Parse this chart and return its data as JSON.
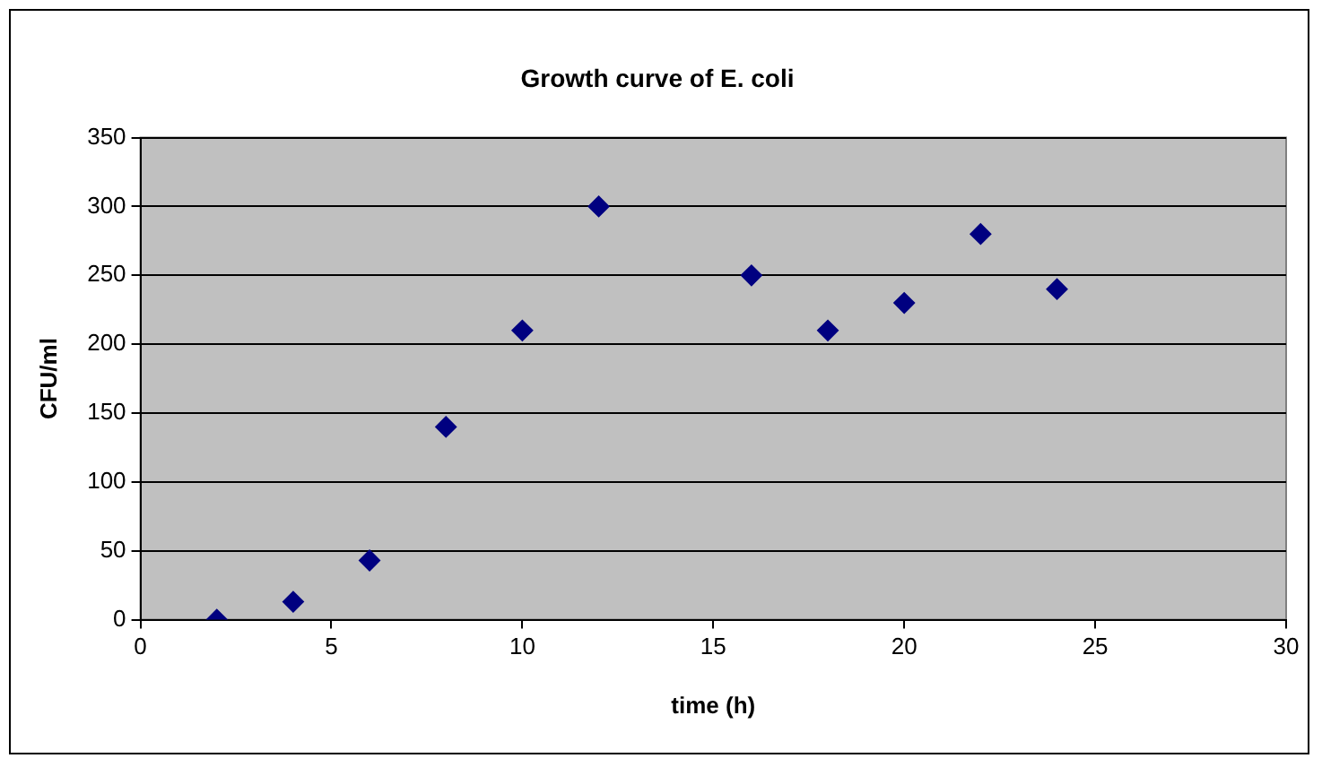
{
  "chart_data": {
    "type": "scatter",
    "title": "Growth curve of E. coli",
    "xlabel": "time (h)",
    "ylabel": "CFU/ml",
    "x": [
      2,
      4,
      6,
      8,
      10,
      12,
      16,
      18,
      20,
      22,
      24
    ],
    "series": [
      {
        "color": "#000080",
        "values": [
          0,
          13,
          43,
          140,
          210,
          300,
          250,
          210,
          230,
          280,
          240
        ]
      }
    ],
    "xlim": [
      0,
      30
    ],
    "xticks": [
      0,
      5,
      10,
      15,
      20,
      25,
      30
    ],
    "ylim": [
      0,
      350
    ],
    "yticks": [
      0,
      50,
      100,
      150,
      200,
      250,
      300,
      350
    ],
    "grid": "y",
    "legend": false,
    "marker": "diamond"
  }
}
